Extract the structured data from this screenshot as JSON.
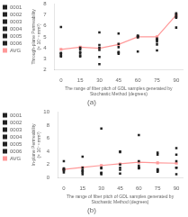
{
  "chart_data": [
    {
      "type": "scatter",
      "xlabel": "The range of fiber pitch of GDL samples generated by Stochastic Method (degrees)",
      "ylabel": "Through-plane Permeability\n(× 10⁻⁵ mm²)",
      "annotation": "(a)",
      "x": [
        0,
        15,
        30,
        45,
        60,
        75,
        90
      ],
      "xlim": [
        -5,
        95
      ],
      "xticks": [
        0,
        15,
        30,
        45,
        60,
        75,
        90
      ],
      "ylim": [
        2.0,
        8.0
      ],
      "yticks": [
        2,
        3,
        4,
        5,
        6,
        7,
        8
      ],
      "grid": false,
      "legend": "upper left",
      "series": [
        {
          "name": "0001",
          "color": "#222222",
          "marker": "square",
          "values": [
            5.9,
            3.2,
            2.5,
            3.55,
            3.65,
            4.3,
            5.85
          ]
        },
        {
          "name": "0002",
          "color": "#222222",
          "marker": "square",
          "values": [
            3.5,
            3.6,
            5.4,
            4.05,
            4.95,
            4.85,
            6.85
          ]
        },
        {
          "name": "0003",
          "color": "#222222",
          "marker": "square",
          "values": [
            3.4,
            4.0,
            3.8,
            4.35,
            5.05,
            3.75,
            7.05
          ]
        },
        {
          "name": "0004",
          "color": "#222222",
          "marker": "square",
          "values": [
            3.5,
            3.85,
            4.0,
            3.6,
            5.1,
            4.75,
            6.75
          ]
        },
        {
          "name": "0005",
          "color": "#222222",
          "marker": "square",
          "values": [
            3.25,
            3.5,
            4.25,
            5.3,
            5.1,
            4.7,
            7.15
          ]
        },
        {
          "name": "0006",
          "color": "#222222",
          "marker": "square",
          "values": [
            3.2,
            3.3,
            3.15,
            3.45,
            5.0,
            4.55,
            6.85
          ]
        },
        {
          "name": "AVG",
          "type": "line",
          "color": "#ff9999",
          "marker": "square",
          "values": [
            3.85,
            4.05,
            3.95,
            4.3,
            5.0,
            5.0,
            7.0
          ]
        }
      ]
    },
    {
      "type": "scatter",
      "xlabel": "The range of fiber pitch of GDL samples generated by Stochastic Method (degrees)",
      "ylabel": "In-plane Permeability\n(× 10⁻⁵ mm²)",
      "annotation": "(b)",
      "x": [
        0,
        15,
        30,
        45,
        60,
        75,
        90
      ],
      "xlim": [
        -5,
        95
      ],
      "xticks": [
        0,
        15,
        30,
        45,
        60,
        75,
        90
      ],
      "ylim": [
        0,
        10
      ],
      "yticks": [
        0,
        2,
        4,
        6,
        8,
        10
      ],
      "grid": false,
      "legend": "upper left",
      "series": [
        {
          "name": "0001",
          "color": "#222222",
          "marker": "square",
          "values": [
            1.4,
            1.15,
            0.7,
            4.0,
            6.5,
            1.25,
            4.5
          ]
        },
        {
          "name": "0002",
          "color": "#222222",
          "marker": "square",
          "values": [
            2.5,
            3.2,
            0.5,
            3.9,
            1.8,
            3.8,
            0.5
          ]
        },
        {
          "name": "0003",
          "color": "#222222",
          "marker": "square",
          "values": [
            1.3,
            1.0,
            7.5,
            0.6,
            1.4,
            1.0,
            2.5
          ]
        },
        {
          "name": "0004",
          "color": "#222222",
          "marker": "square",
          "values": [
            1.2,
            0.8,
            1.5,
            2.0,
            1.5,
            1.2,
            3.5
          ]
        },
        {
          "name": "0005",
          "color": "#222222",
          "marker": "square",
          "values": [
            1.1,
            1.5,
            0.7,
            1.5,
            2.5,
            3.5,
            1.5
          ]
        },
        {
          "name": "0006",
          "color": "#222222",
          "marker": "square",
          "values": [
            0.8,
            0.5,
            1.4,
            1.2,
            1.5,
            0.9,
            1.5
          ]
        },
        {
          "name": "AVG",
          "type": "line",
          "color": "#ff9999",
          "marker": "square",
          "values": [
            1.25,
            1.55,
            1.85,
            2.1,
            2.35,
            2.25,
            2.2
          ]
        }
      ]
    }
  ]
}
